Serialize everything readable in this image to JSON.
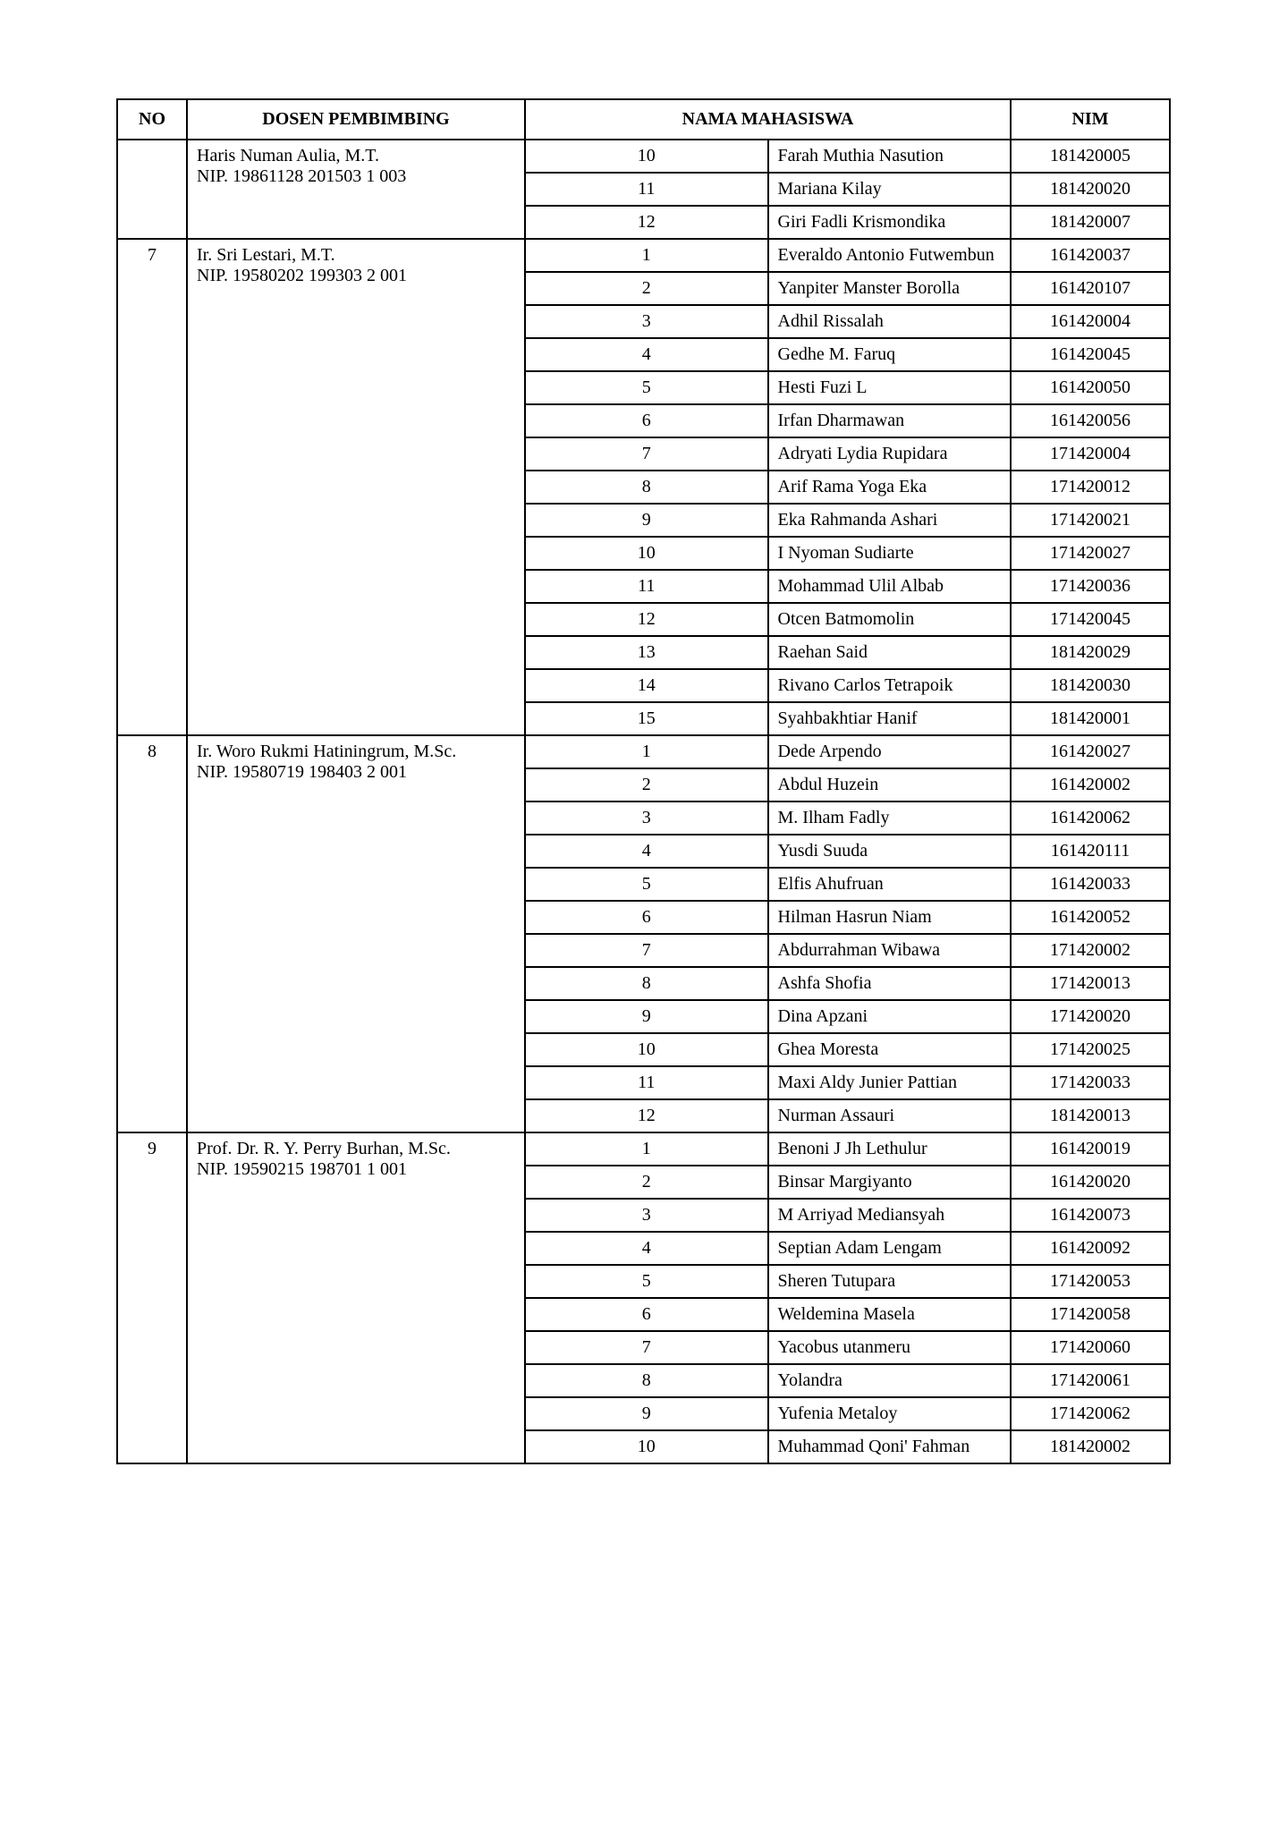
{
  "headers": {
    "no": "NO",
    "dosen": "DOSEN PEMBIMBING",
    "nama": "NAMA MAHASISWA",
    "nim": "NIM"
  },
  "groups": [
    {
      "no": "",
      "dosen": "Haris Numan Aulia, M.T.\nNIP. 19861128 201503 1 003",
      "students": [
        {
          "idx": "10",
          "nama": "Farah Muthia Nasution",
          "nim": "181420005"
        },
        {
          "idx": "11",
          "nama": "Mariana Kilay",
          "nim": "181420020"
        },
        {
          "idx": "12",
          "nama": "Giri Fadli Krismondika",
          "nim": "181420007"
        }
      ]
    },
    {
      "no": "7",
      "dosen": "Ir. Sri Lestari, M.T.\nNIP. 19580202 199303 2 001",
      "students": [
        {
          "idx": "1",
          "nama": "Everaldo Antonio Futwembun",
          "nim": "161420037"
        },
        {
          "idx": "2",
          "nama": "Yanpiter Manster Borolla",
          "nim": "161420107"
        },
        {
          "idx": "3",
          "nama": "Adhil Rissalah",
          "nim": "161420004"
        },
        {
          "idx": "4",
          "nama": "Gedhe M. Faruq",
          "nim": "161420045"
        },
        {
          "idx": "5",
          "nama": "Hesti Fuzi L",
          "nim": "161420050"
        },
        {
          "idx": "6",
          "nama": "Irfan Dharmawan",
          "nim": "161420056"
        },
        {
          "idx": "7",
          "nama": "Adryati Lydia Rupidara",
          "nim": "171420004"
        },
        {
          "idx": "8",
          "nama": "Arif Rama Yoga Eka",
          "nim": "171420012"
        },
        {
          "idx": "9",
          "nama": "Eka Rahmanda Ashari",
          "nim": "171420021"
        },
        {
          "idx": "10",
          "nama": "I Nyoman Sudiarte",
          "nim": "171420027"
        },
        {
          "idx": "11",
          "nama": "Mohammad Ulil Albab",
          "nim": "171420036"
        },
        {
          "idx": "12",
          "nama": "Otcen Batmomolin",
          "nim": "171420045"
        },
        {
          "idx": "13",
          "nama": "Raehan Said",
          "nim": "181420029"
        },
        {
          "idx": "14",
          "nama": "Rivano Carlos Tetrapoik",
          "nim": "181420030"
        },
        {
          "idx": "15",
          "nama": "Syahbakhtiar Hanif",
          "nim": "181420001"
        }
      ]
    },
    {
      "no": "8",
      "dosen": "Ir. Woro Rukmi Hatiningrum, M.Sc.\nNIP. 19580719 198403 2 001",
      "students": [
        {
          "idx": "1",
          "nama": "Dede Arpendo",
          "nim": "161420027"
        },
        {
          "idx": "2",
          "nama": "Abdul Huzein",
          "nim": "161420002"
        },
        {
          "idx": "3",
          "nama": "M. Ilham Fadly",
          "nim": "161420062"
        },
        {
          "idx": "4",
          "nama": "Yusdi Suuda",
          "nim": "161420111"
        },
        {
          "idx": "5",
          "nama": "Elfis Ahufruan",
          "nim": "161420033"
        },
        {
          "idx": "6",
          "nama": "Hilman Hasrun Niam",
          "nim": "161420052"
        },
        {
          "idx": "7",
          "nama": "Abdurrahman Wibawa",
          "nim": "171420002"
        },
        {
          "idx": "8",
          "nama": "Ashfa Shofia",
          "nim": "171420013"
        },
        {
          "idx": "9",
          "nama": "Dina Apzani",
          "nim": "171420020"
        },
        {
          "idx": "10",
          "nama": "Ghea Moresta",
          "nim": "171420025"
        },
        {
          "idx": "11",
          "nama": "Maxi Aldy Junier Pattian",
          "nim": "171420033"
        },
        {
          "idx": "12",
          "nama": "Nurman Assauri",
          "nim": "181420013"
        }
      ]
    },
    {
      "no": "9",
      "dosen": "Prof. Dr. R. Y. Perry Burhan, M.Sc.\nNIP. 19590215 198701 1 001",
      "students": [
        {
          "idx": "1",
          "nama": "Benoni J Jh Lethulur",
          "nim": "161420019"
        },
        {
          "idx": "2",
          "nama": "Binsar Margiyanto",
          "nim": "161420020"
        },
        {
          "idx": "3",
          "nama": "M Arriyad Mediansyah",
          "nim": "161420073"
        },
        {
          "idx": "4",
          "nama": "Septian Adam Lengam",
          "nim": "161420092"
        },
        {
          "idx": "5",
          "nama": "Sheren Tutupara",
          "nim": "171420053"
        },
        {
          "idx": "6",
          "nama": "Weldemina Masela",
          "nim": "171420058"
        },
        {
          "idx": "7",
          "nama": "Yacobus utanmeru",
          "nim": "171420060"
        },
        {
          "idx": "8",
          "nama": "Yolandra",
          "nim": "171420061"
        },
        {
          "idx": "9",
          "nama": "Yufenia Metaloy",
          "nim": "171420062"
        },
        {
          "idx": "10",
          "nama": "Muhammad Qoni' Fahman",
          "nim": "181420002"
        }
      ]
    }
  ]
}
